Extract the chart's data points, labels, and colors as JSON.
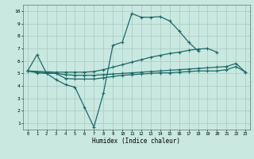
{
  "xlabel": "Humidex (Indice chaleur)",
  "bg_color": "#c8e8e0",
  "line_color": "#1a6b6b",
  "xlim": [
    -0.5,
    23.5
  ],
  "ylim": [
    0.5,
    10.5
  ],
  "xtick_labels": [
    "0",
    "1",
    "2",
    "3",
    "4",
    "5",
    "6",
    "7",
    "8",
    "9",
    "10",
    "11",
    "12",
    "13",
    "14",
    "15",
    "16",
    "17",
    "18",
    "19",
    "20",
    "21",
    "22",
    "23"
  ],
  "ytick_labels": [
    "1",
    "2",
    "3",
    "4",
    "5",
    "6",
    "7",
    "8",
    "9",
    "10"
  ],
  "line1": {
    "x": [
      0,
      1,
      2,
      3,
      4,
      5,
      6,
      7,
      8,
      9,
      10,
      11,
      12,
      13,
      14,
      15,
      16,
      17,
      18
    ],
    "y": [
      5.2,
      6.5,
      5.0,
      4.5,
      4.1,
      3.9,
      2.3,
      0.7,
      3.4,
      7.25,
      7.5,
      9.8,
      9.5,
      9.5,
      9.55,
      9.2,
      8.4,
      7.5,
      6.8
    ]
  },
  "line2": {
    "x": [
      0,
      3,
      4,
      5,
      6,
      7,
      8,
      9,
      10,
      11,
      12,
      13,
      14,
      15,
      16,
      17,
      18,
      19,
      20
    ],
    "y": [
      5.2,
      5.1,
      5.1,
      5.1,
      5.1,
      5.15,
      5.3,
      5.5,
      5.7,
      5.9,
      6.1,
      6.3,
      6.45,
      6.6,
      6.7,
      6.85,
      6.95,
      7.0,
      6.7
    ]
  },
  "line3": {
    "x": [
      0,
      1,
      2,
      3,
      4,
      5,
      6,
      7,
      8,
      9,
      10,
      11,
      12,
      13,
      14,
      15,
      16,
      17,
      18,
      19,
      20,
      21,
      22,
      23
    ],
    "y": [
      5.2,
      5.1,
      5.05,
      5.0,
      4.9,
      4.85,
      4.85,
      4.85,
      4.9,
      4.95,
      5.0,
      5.05,
      5.1,
      5.15,
      5.2,
      5.25,
      5.3,
      5.35,
      5.4,
      5.45,
      5.5,
      5.55,
      5.8,
      5.1
    ]
  },
  "line4": {
    "x": [
      0,
      1,
      2,
      3,
      4,
      5,
      6,
      7,
      8,
      9,
      10,
      11,
      12,
      13,
      14,
      15,
      16,
      17,
      18,
      19,
      20,
      21,
      22,
      23
    ],
    "y": [
      5.2,
      5.05,
      5.0,
      5.0,
      4.6,
      4.55,
      4.55,
      4.55,
      4.65,
      4.75,
      4.85,
      4.9,
      4.95,
      5.0,
      5.05,
      5.05,
      5.1,
      5.15,
      5.2,
      5.2,
      5.2,
      5.3,
      5.55,
      5.1
    ]
  }
}
